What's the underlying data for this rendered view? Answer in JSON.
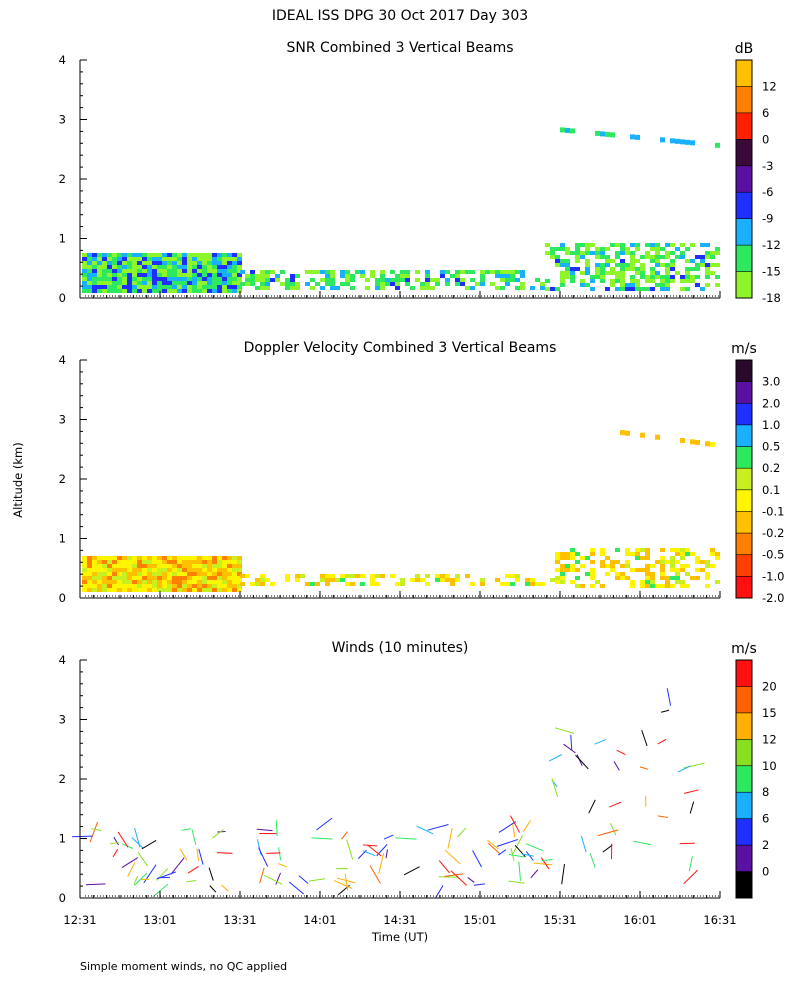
{
  "page": {
    "title": "IDEAL ISS DPG  30 Oct 2017 Day 303",
    "footer": "Simple moment winds, no QC applied",
    "ylabel": "Altitude (km)",
    "xlabel": "Time (UT)"
  },
  "chart_data": [
    {
      "type": "heatmap",
      "title": "SNR Combined 3 Vertical Beams",
      "colorbar_unit": "dB",
      "colorbar_ticks": [
        "12",
        "6",
        "0",
        "-3",
        "-6",
        "-9",
        "-12",
        "-15",
        "-18"
      ],
      "colorbar_colors": [
        "#ffc000",
        "#ff8000",
        "#ff2000",
        "#3a0a3a",
        "#5a10a0",
        "#1f2fff",
        "#19b0ff",
        "#2ee860",
        "#8ef52a"
      ],
      "ylim": [
        0,
        4
      ],
      "yticks": [
        "0",
        "1",
        "2",
        "3",
        "4"
      ],
      "xticks": [
        "12:31",
        "13:01",
        "13:31",
        "14:01",
        "14:31",
        "15:01",
        "15:31",
        "16:01",
        "16:31"
      ],
      "grid": false
    },
    {
      "type": "heatmap",
      "title": "Doppler Velocity Combined 3 Vertical Beams",
      "colorbar_unit": "m/s",
      "colorbar_ticks": [
        "3.0",
        "2.0",
        "1.0",
        "0.5",
        "0.2",
        "0.1",
        "-0.1",
        "-0.2",
        "-0.5",
        "-1.0",
        "-2.0"
      ],
      "colorbar_colors": [
        "#2a0a2a",
        "#5a10a0",
        "#1f2fff",
        "#19b0ff",
        "#2ee860",
        "#c8f020",
        "#fff500",
        "#ffc000",
        "#ff8000",
        "#ff4000",
        "#ff1010"
      ],
      "ylim": [
        0,
        4
      ],
      "yticks": [
        "0",
        "1",
        "2",
        "3",
        "4"
      ],
      "xticks": [
        "12:31",
        "13:01",
        "13:31",
        "14:01",
        "14:31",
        "15:01",
        "15:31",
        "16:01",
        "16:31"
      ],
      "grid": false
    },
    {
      "type": "scatter",
      "title": "Winds (10 minutes)",
      "colorbar_unit": "m/s",
      "colorbar_ticks": [
        "20",
        "15",
        "12",
        "10",
        "8",
        "6",
        "2",
        "0"
      ],
      "colorbar_colors": [
        "#ff1010",
        "#ff6000",
        "#ffb000",
        "#88e020",
        "#2ee860",
        "#19b0ff",
        "#1f2fff",
        "#5a10a0",
        "#000000"
      ],
      "ylim": [
        0,
        4
      ],
      "yticks": [
        "0",
        "1",
        "2",
        "3",
        "4"
      ],
      "xticks": [
        "12:31",
        "13:01",
        "13:31",
        "14:01",
        "14:31",
        "15:01",
        "15:31",
        "16:01",
        "16:31"
      ],
      "grid": false
    }
  ]
}
